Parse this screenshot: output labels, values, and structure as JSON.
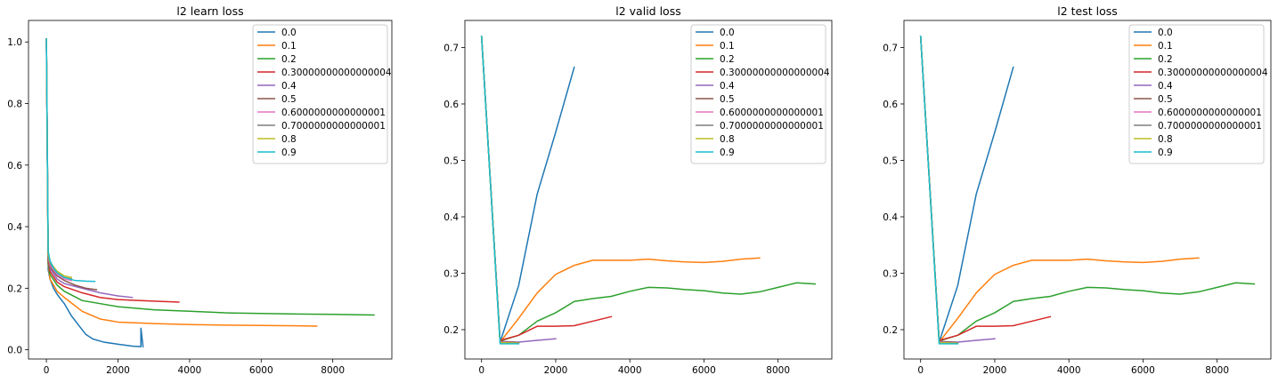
{
  "palette": [
    "#1f77b4",
    "#ff7f0e",
    "#2ca02c",
    "#d62728",
    "#9467bd",
    "#8c564b",
    "#e377c2",
    "#7f7f7f",
    "#bcbd22",
    "#17becf"
  ],
  "chart_data": [
    {
      "type": "line",
      "title": "l2 learn loss",
      "xlabel": "",
      "ylabel": "",
      "xlim": [
        -500,
        9650
      ],
      "ylim": [
        -0.03,
        1.07
      ],
      "xticks": [
        0,
        2000,
        4000,
        6000,
        8000
      ],
      "xtick_labels": [
        "0",
        "2000",
        "4000",
        "6000",
        "8000"
      ],
      "yticks": [
        0.0,
        0.2,
        0.4,
        0.6,
        0.8,
        1.0
      ],
      "ytick_labels": [
        "0.0",
        "0.2",
        "0.4",
        "0.6",
        "0.8",
        "1.0"
      ],
      "grid": false,
      "legend_position": "top-right",
      "series": [
        {
          "name": "0.0",
          "x": [
            0,
            50,
            100,
            200,
            300,
            500,
            700,
            900,
            1100,
            1300,
            1600,
            2000,
            2400,
            2640,
            2640,
            2700
          ],
          "y": [
            1.01,
            0.26,
            0.23,
            0.2,
            0.18,
            0.15,
            0.11,
            0.08,
            0.05,
            0.035,
            0.025,
            0.018,
            0.012,
            0.01,
            0.07,
            0.01
          ]
        },
        {
          "name": "0.1",
          "x": [
            0,
            50,
            100,
            300,
            500,
            1000,
            1500,
            2000,
            3000,
            4000,
            5000,
            6000,
            7000,
            7550
          ],
          "y": [
            1.01,
            0.28,
            0.23,
            0.19,
            0.17,
            0.125,
            0.1,
            0.09,
            0.085,
            0.082,
            0.08,
            0.079,
            0.078,
            0.077
          ]
        },
        {
          "name": "0.2",
          "x": [
            0,
            50,
            100,
            300,
            500,
            1000,
            2000,
            3000,
            4000,
            5000,
            6000,
            7000,
            8000,
            9150
          ],
          "y": [
            1.01,
            0.28,
            0.245,
            0.21,
            0.19,
            0.16,
            0.14,
            0.13,
            0.125,
            0.12,
            0.118,
            0.116,
            0.115,
            0.113
          ]
        },
        {
          "name": "0.30000000000000004",
          "x": [
            0,
            50,
            100,
            300,
            500,
            1000,
            1500,
            2000,
            3000,
            3700
          ],
          "y": [
            1.01,
            0.29,
            0.255,
            0.22,
            0.205,
            0.185,
            0.17,
            0.163,
            0.158,
            0.155
          ]
        },
        {
          "name": "0.4",
          "x": [
            0,
            50,
            100,
            300,
            500,
            1000,
            1500,
            2000,
            2400
          ],
          "y": [
            1.01,
            0.3,
            0.265,
            0.23,
            0.215,
            0.2,
            0.185,
            0.175,
            0.17
          ]
        },
        {
          "name": "0.5",
          "x": [
            0,
            50,
            100,
            300,
            500,
            800,
            1100,
            1400
          ],
          "y": [
            1.01,
            0.3,
            0.27,
            0.24,
            0.225,
            0.21,
            0.2,
            0.195
          ]
        },
        {
          "name": "0.6000000000000001",
          "x": [
            0,
            50,
            100,
            300,
            500,
            700
          ],
          "y": [
            1.01,
            0.3,
            0.275,
            0.245,
            0.23,
            0.225
          ]
        },
        {
          "name": "0.7000000000000001",
          "x": [
            0,
            50,
            100,
            300,
            500,
            700
          ],
          "y": [
            1.01,
            0.3,
            0.28,
            0.25,
            0.235,
            0.23
          ]
        },
        {
          "name": "0.8",
          "x": [
            0,
            50,
            100,
            300,
            500,
            700
          ],
          "y": [
            1.01,
            0.31,
            0.285,
            0.255,
            0.24,
            0.235
          ]
        },
        {
          "name": "0.9",
          "x": [
            0,
            50,
            100,
            200,
            300,
            500,
            800,
            1100,
            1350
          ],
          "y": [
            1.01,
            0.32,
            0.29,
            0.265,
            0.25,
            0.235,
            0.225,
            0.223,
            0.222
          ]
        }
      ]
    },
    {
      "type": "line",
      "title": "l2 valid loss",
      "xlabel": "",
      "ylabel": "",
      "xlim": [
        -450,
        9450
      ],
      "ylim": [
        0.148,
        0.748
      ],
      "xticks": [
        0,
        2000,
        4000,
        6000,
        8000
      ],
      "xtick_labels": [
        "0",
        "2000",
        "4000",
        "6000",
        "8000"
      ],
      "yticks": [
        0.2,
        0.3,
        0.4,
        0.5,
        0.6,
        0.7
      ],
      "ytick_labels": [
        "0.2",
        "0.3",
        "0.4",
        "0.5",
        "0.6",
        "0.7"
      ],
      "grid": false,
      "legend_position": "top-right",
      "series": [
        {
          "name": "0.0",
          "x": [
            0,
            500,
            1000,
            1500,
            2000,
            2500
          ],
          "y": [
            0.72,
            0.178,
            0.278,
            0.44,
            0.55,
            0.665
          ]
        },
        {
          "name": "0.1",
          "x": [
            0,
            500,
            1000,
            1500,
            2000,
            2500,
            3000,
            3500,
            4000,
            4500,
            5000,
            5500,
            6000,
            6500,
            7000,
            7500
          ],
          "y": [
            0.72,
            0.178,
            0.22,
            0.265,
            0.298,
            0.314,
            0.323,
            0.323,
            0.323,
            0.325,
            0.322,
            0.32,
            0.319,
            0.321,
            0.325,
            0.327
          ]
        },
        {
          "name": "0.2",
          "x": [
            0,
            500,
            1000,
            1500,
            2000,
            2500,
            3000,
            3500,
            4000,
            4500,
            5000,
            5500,
            6000,
            6500,
            7000,
            7500,
            8000,
            8500,
            9000
          ],
          "y": [
            0.72,
            0.18,
            0.19,
            0.215,
            0.23,
            0.25,
            0.255,
            0.259,
            0.268,
            0.275,
            0.274,
            0.271,
            0.269,
            0.265,
            0.263,
            0.267,
            0.275,
            0.283,
            0.281
          ]
        },
        {
          "name": "0.30000000000000004",
          "x": [
            0,
            500,
            1000,
            1500,
            2000,
            2500,
            3000,
            3500
          ],
          "y": [
            0.72,
            0.181,
            0.19,
            0.206,
            0.206,
            0.207,
            0.215,
            0.223
          ]
        },
        {
          "name": "0.4",
          "x": [
            0,
            500,
            1000,
            1500,
            2000
          ],
          "y": [
            0.72,
            0.179,
            0.178,
            0.181,
            0.184
          ]
        },
        {
          "name": "0.5",
          "x": [
            0,
            500,
            1000
          ],
          "y": [
            0.72,
            0.179,
            0.177
          ]
        },
        {
          "name": "0.6000000000000001",
          "x": [
            0,
            500,
            1000
          ],
          "y": [
            0.72,
            0.178,
            0.176
          ]
        },
        {
          "name": "0.7000000000000001",
          "x": [
            0,
            500,
            1000
          ],
          "y": [
            0.72,
            0.177,
            0.176
          ]
        },
        {
          "name": "0.8",
          "x": [
            0,
            500,
            1000
          ],
          "y": [
            0.72,
            0.177,
            0.176
          ]
        },
        {
          "name": "0.9",
          "x": [
            0,
            500,
            1000
          ],
          "y": [
            0.72,
            0.175,
            0.175
          ]
        }
      ]
    },
    {
      "type": "line",
      "title": "l2 test loss",
      "xlabel": "",
      "ylabel": "",
      "xlim": [
        -450,
        9450
      ],
      "ylim": [
        0.148,
        0.748
      ],
      "xticks": [
        0,
        2000,
        4000,
        6000,
        8000
      ],
      "xtick_labels": [
        "0",
        "2000",
        "4000",
        "6000",
        "8000"
      ],
      "yticks": [
        0.2,
        0.3,
        0.4,
        0.5,
        0.6,
        0.7
      ],
      "ytick_labels": [
        "0.2",
        "0.3",
        "0.4",
        "0.5",
        "0.6",
        "0.7"
      ],
      "grid": false,
      "legend_position": "top-right",
      "series": [
        {
          "name": "0.0",
          "x": [
            0,
            500,
            1000,
            1500,
            2000,
            2500
          ],
          "y": [
            0.72,
            0.178,
            0.278,
            0.44,
            0.55,
            0.665
          ]
        },
        {
          "name": "0.1",
          "x": [
            0,
            500,
            1000,
            1500,
            2000,
            2500,
            3000,
            3500,
            4000,
            4500,
            5000,
            5500,
            6000,
            6500,
            7000,
            7500
          ],
          "y": [
            0.72,
            0.178,
            0.22,
            0.265,
            0.298,
            0.314,
            0.323,
            0.323,
            0.323,
            0.325,
            0.322,
            0.32,
            0.319,
            0.321,
            0.325,
            0.327
          ]
        },
        {
          "name": "0.2",
          "x": [
            0,
            500,
            1000,
            1500,
            2000,
            2500,
            3000,
            3500,
            4000,
            4500,
            5000,
            5500,
            6000,
            6500,
            7000,
            7500,
            8000,
            8500,
            9000
          ],
          "y": [
            0.72,
            0.18,
            0.19,
            0.215,
            0.23,
            0.25,
            0.255,
            0.259,
            0.268,
            0.275,
            0.274,
            0.271,
            0.269,
            0.265,
            0.263,
            0.267,
            0.275,
            0.283,
            0.281
          ]
        },
        {
          "name": "0.30000000000000004",
          "x": [
            0,
            500,
            1000,
            1500,
            2000,
            2500,
            3000,
            3500
          ],
          "y": [
            0.72,
            0.181,
            0.19,
            0.206,
            0.206,
            0.207,
            0.215,
            0.223
          ]
        },
        {
          "name": "0.4",
          "x": [
            0,
            500,
            1000,
            1500,
            2000
          ],
          "y": [
            0.72,
            0.179,
            0.178,
            0.181,
            0.184
          ]
        },
        {
          "name": "0.5",
          "x": [
            0,
            500,
            1000
          ],
          "y": [
            0.72,
            0.179,
            0.177
          ]
        },
        {
          "name": "0.6000000000000001",
          "x": [
            0,
            500,
            1000
          ],
          "y": [
            0.72,
            0.178,
            0.176
          ]
        },
        {
          "name": "0.7000000000000001",
          "x": [
            0,
            500,
            1000
          ],
          "y": [
            0.72,
            0.177,
            0.176
          ]
        },
        {
          "name": "0.8",
          "x": [
            0,
            500,
            1000
          ],
          "y": [
            0.72,
            0.177,
            0.176
          ]
        },
        {
          "name": "0.9",
          "x": [
            0,
            500,
            1000
          ],
          "y": [
            0.72,
            0.175,
            0.175
          ]
        }
      ]
    }
  ]
}
